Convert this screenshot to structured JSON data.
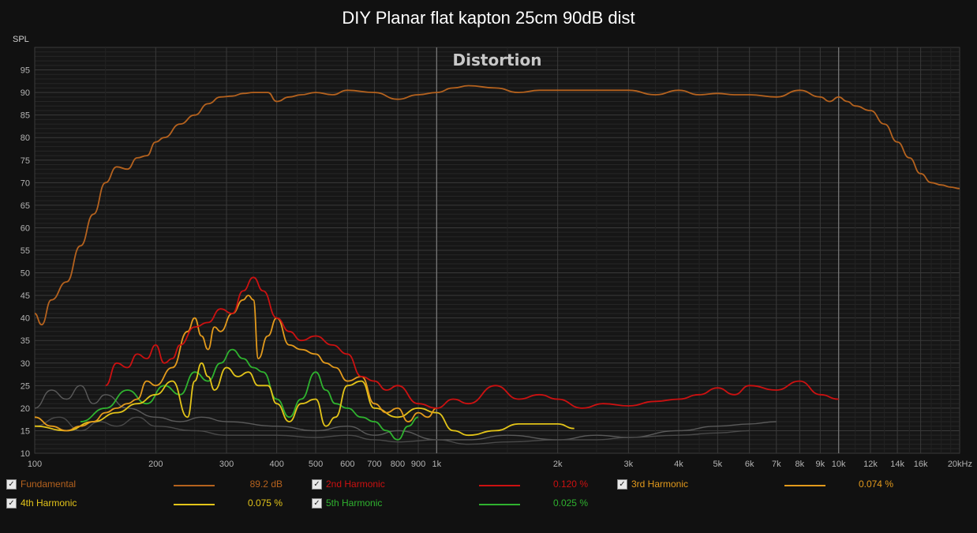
{
  "chart_data": {
    "type": "line",
    "title": "DIY Planar flat kapton 25cm 90dB dist",
    "inner_title": "Distortion",
    "ylabel": "SPL",
    "x_scale": "log",
    "xlim": [
      100,
      20000
    ],
    "ylim": [
      10,
      100
    ],
    "x_ticks": [
      {
        "v": 100,
        "label": "100"
      },
      {
        "v": 200,
        "label": "200"
      },
      {
        "v": 300,
        "label": "300"
      },
      {
        "v": 400,
        "label": "400"
      },
      {
        "v": 500,
        "label": "500"
      },
      {
        "v": 600,
        "label": "600"
      },
      {
        "v": 700,
        "label": "700"
      },
      {
        "v": 800,
        "label": "800"
      },
      {
        "v": 900,
        "label": "900"
      },
      {
        "v": 1000,
        "label": "1k"
      },
      {
        "v": 2000,
        "label": "2k"
      },
      {
        "v": 3000,
        "label": "3k"
      },
      {
        "v": 4000,
        "label": "4k"
      },
      {
        "v": 5000,
        "label": "5k"
      },
      {
        "v": 6000,
        "label": "6k"
      },
      {
        "v": 7000,
        "label": "7k"
      },
      {
        "v": 8000,
        "label": "8k"
      },
      {
        "v": 9000,
        "label": "9k"
      },
      {
        "v": 10000,
        "label": "10k"
      },
      {
        "v": 12000,
        "label": "12k"
      },
      {
        "v": 14000,
        "label": "14k"
      },
      {
        "v": 16000,
        "label": "16k"
      },
      {
        "v": 20000,
        "label": "20kHz"
      }
    ],
    "y_ticks": [
      10,
      15,
      20,
      25,
      30,
      35,
      40,
      45,
      50,
      55,
      60,
      65,
      70,
      75,
      80,
      85,
      90,
      95
    ],
    "grid": true,
    "series": [
      {
        "name": "Fundamental",
        "color": "#b5621e",
        "value_label": "89.2 dB",
        "x": [
          100,
          104,
          110,
          120,
          130,
          140,
          150,
          160,
          170,
          180,
          190,
          200,
          210,
          230,
          250,
          270,
          290,
          310,
          330,
          350,
          380,
          400,
          430,
          460,
          500,
          550,
          600,
          700,
          800,
          900,
          1000,
          1100,
          1200,
          1400,
          1600,
          1800,
          2000,
          2300,
          2600,
          3000,
          3500,
          4000,
          4500,
          5000,
          5500,
          6000,
          7000,
          8000,
          9000,
          9500,
          10000,
          10500,
          11000,
          12000,
          13000,
          14000,
          15000,
          16000,
          17000,
          18000,
          19000,
          20000
        ],
        "y": [
          41,
          38.5,
          44,
          48,
          56,
          63,
          70,
          73.5,
          73,
          75.5,
          76,
          79,
          80,
          83,
          85,
          87.5,
          89,
          89.2,
          89.8,
          90,
          90,
          88,
          89,
          89.5,
          90,
          89.5,
          90.5,
          90,
          88.5,
          89.5,
          90,
          91,
          91.5,
          91,
          90,
          90.5,
          90.5,
          90.5,
          90.5,
          90.5,
          89.5,
          90.5,
          89.5,
          89.8,
          89.5,
          89.5,
          89,
          90.5,
          89,
          88,
          89,
          88,
          87,
          86,
          83,
          79,
          75.5,
          72,
          70,
          69.5,
          69,
          68.7
        ]
      },
      {
        "name": "2nd Harmonic",
        "color": "#cc1111",
        "value_label": "0.120 %",
        "x": [
          150,
          160,
          170,
          180,
          190,
          200,
          210,
          220,
          230,
          250,
          270,
          290,
          310,
          330,
          350,
          370,
          400,
          430,
          460,
          500,
          550,
          600,
          650,
          700,
          750,
          800,
          900,
          1000,
          1100,
          1200,
          1400,
          1600,
          1800,
          2000,
          2300,
          2600,
          3000,
          3500,
          4000,
          4500,
          5000,
          5500,
          6000,
          7000,
          8000,
          9000,
          10000
        ],
        "y": [
          25,
          30,
          29,
          32,
          31,
          34,
          30,
          31,
          34,
          38,
          39,
          42,
          41,
          46,
          49,
          46,
          40,
          37,
          35,
          36,
          34,
          32,
          27,
          26,
          24,
          25,
          21,
          20,
          22,
          21,
          25,
          22,
          23,
          22,
          20,
          21,
          20.5,
          21.5,
          22,
          23,
          24.5,
          23,
          25,
          24,
          26,
          23,
          22
        ]
      },
      {
        "name": "3rd Harmonic",
        "color": "#e39a1c",
        "value_label": "0.074 %",
        "x": [
          100,
          110,
          120,
          130,
          140,
          150,
          160,
          170,
          180,
          190,
          200,
          220,
          240,
          250,
          260,
          270,
          280,
          290,
          310,
          330,
          340,
          350,
          360,
          380,
          400,
          430,
          460,
          500,
          530,
          560,
          600,
          650,
          700,
          750,
          800,
          850,
          900,
          950,
          1000
        ],
        "y": [
          18,
          16,
          15,
          16,
          17,
          19,
          20,
          21,
          22,
          26,
          25,
          29,
          37,
          40,
          36,
          33,
          38,
          37,
          41,
          44,
          45,
          44,
          31,
          36,
          40,
          34,
          33,
          32,
          30,
          29,
          26,
          27,
          21,
          19,
          20,
          17,
          19,
          18,
          20
        ]
      },
      {
        "name": "4th Harmonic",
        "color": "#e3c419",
        "value_label": "0.075 %",
        "x": [
          100,
          120,
          140,
          160,
          180,
          200,
          220,
          240,
          250,
          260,
          270,
          280,
          300,
          320,
          340,
          360,
          380,
          400,
          430,
          460,
          500,
          530,
          560,
          600,
          650,
          700,
          800,
          900,
          1000,
          1100,
          1200,
          1400,
          1600,
          2000,
          2200
        ],
        "y": [
          16,
          15,
          17,
          19,
          21,
          23,
          26,
          18,
          26,
          30,
          27,
          24,
          29,
          27,
          28,
          25,
          25,
          21,
          17,
          21,
          22,
          16,
          18,
          25,
          26,
          20,
          18,
          20,
          19,
          15,
          14,
          15,
          16.5,
          16.5,
          15.5
        ]
      },
      {
        "name": "5th Harmonic",
        "color": "#2fb22f",
        "value_label": "0.025 %",
        "x": [
          130,
          150,
          170,
          190,
          210,
          230,
          250,
          270,
          290,
          310,
          330,
          350,
          370,
          400,
          430,
          460,
          500,
          530,
          560,
          600,
          650,
          700,
          750,
          800,
          850,
          900
        ],
        "y": [
          17,
          20,
          24,
          21,
          25,
          23,
          28,
          26,
          30,
          33,
          31,
          29,
          28,
          22,
          18,
          22,
          28,
          24,
          21,
          20,
          18,
          17,
          15,
          13,
          16,
          18
        ]
      },
      {
        "name": "",
        "color": "#5a5a5a",
        "value_label": "",
        "x": [
          100,
          110,
          120,
          130,
          140,
          150,
          170,
          200,
          230,
          260,
          300,
          400,
          500,
          600,
          700,
          800,
          1000,
          1200,
          1500,
          2000,
          2500,
          3000,
          4000,
          5000,
          6000,
          7000
        ],
        "y": [
          20,
          24,
          22,
          25,
          21,
          23,
          20,
          18,
          17,
          18,
          17,
          16,
          15,
          16,
          14,
          15,
          13,
          13,
          14,
          13,
          14,
          13.5,
          15,
          16,
          16.5,
          17
        ]
      },
      {
        "name": "",
        "color": "#4a4a4a",
        "value_label": "",
        "x": [
          100,
          115,
          130,
          145,
          160,
          180,
          200,
          250,
          300,
          400,
          500,
          600,
          700,
          800,
          1000,
          1200,
          1500,
          2000,
          2500,
          3000,
          4000,
          5000,
          6000
        ],
        "y": [
          16,
          18,
          15,
          17,
          16,
          18,
          16,
          15,
          14,
          14,
          13.5,
          14,
          13,
          12.5,
          13,
          12,
          12.5,
          13,
          13,
          13.5,
          14,
          14.5,
          15
        ]
      }
    ],
    "legend": {
      "placement": "bottom",
      "items": [
        {
          "name": "Fundamental",
          "value": "89.2 dB",
          "color": "#b5621e",
          "checked": true
        },
        {
          "name": "2nd Harmonic",
          "value": "0.120 %",
          "color": "#cc1111",
          "checked": true
        },
        {
          "name": "3rd Harmonic",
          "value": "0.074 %",
          "color": "#e39a1c",
          "checked": true
        },
        {
          "name": "4th Harmonic",
          "value": "0.075 %",
          "color": "#e3c419",
          "checked": true
        },
        {
          "name": "5th Harmonic",
          "value": "0.025 %",
          "color": "#2fb22f",
          "checked": true
        }
      ]
    }
  }
}
